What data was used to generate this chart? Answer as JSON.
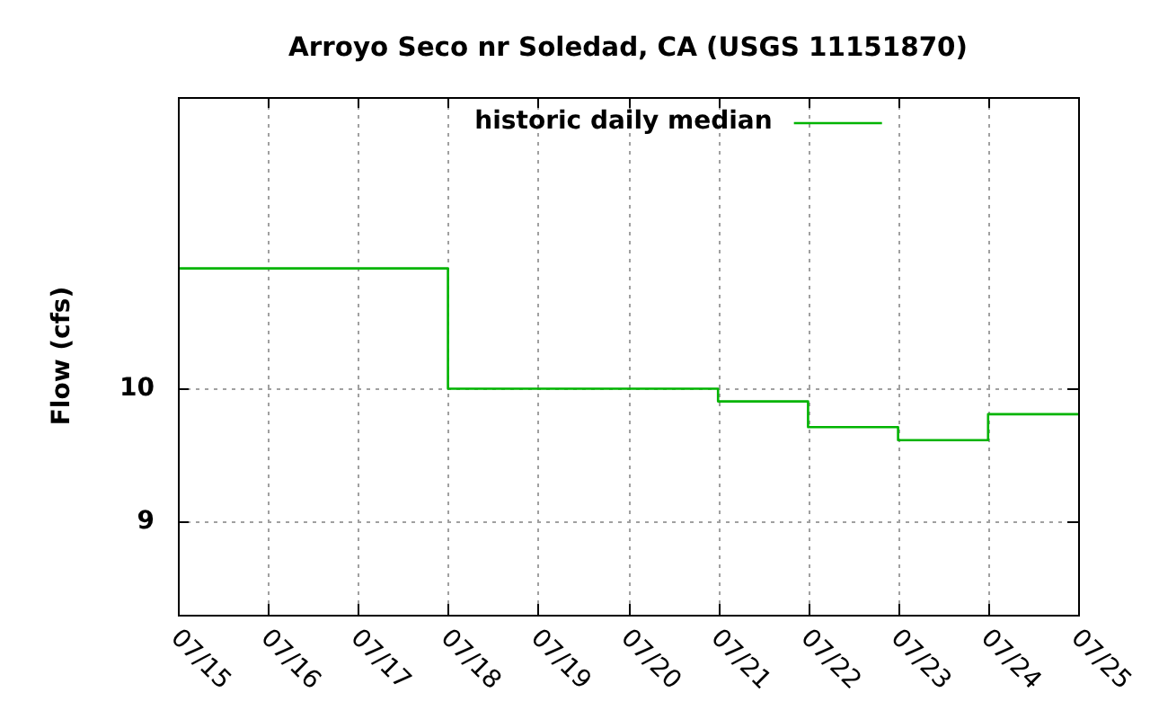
{
  "chart_data": {
    "type": "step",
    "title": "Arroyo Seco nr Soledad, CA (USGS 11151870)",
    "ylabel": "Flow (cfs)",
    "x": [
      "--07-15",
      "--07-16",
      "--07-17",
      "--07-18",
      "--07-19",
      "--07-20",
      "--07-21",
      "--07-22",
      "--07-23",
      "--07-24",
      "--07-25"
    ],
    "series": [
      {
        "name": "historic daily median",
        "color": "#00b400",
        "values": [
          11,
          11,
          11,
          10,
          10,
          10,
          9.9,
          9.7,
          9.6,
          9.8,
          9.8
        ]
      }
    ],
    "xlim": [
      "--07-15",
      "--07-25"
    ],
    "xticks": [
      {
        "value": "--07-15",
        "label": "07/15"
      },
      {
        "value": "--07-16",
        "label": "07/16"
      },
      {
        "value": "--07-17",
        "label": "07/17"
      },
      {
        "value": "--07-18",
        "label": "07/18"
      },
      {
        "value": "--07-19",
        "label": "07/19"
      },
      {
        "value": "--07-20",
        "label": "07/20"
      },
      {
        "value": "--07-21",
        "label": "07/21"
      },
      {
        "value": "--07-22",
        "label": "07/22"
      },
      {
        "value": "--07-23",
        "label": "07/23"
      },
      {
        "value": "--07-24",
        "label": "07/24"
      },
      {
        "value": "--07-25",
        "label": "07/25"
      }
    ],
    "ylim": [
      8.36,
      12.6
    ],
    "yticks": [
      9,
      10
    ],
    "log": true,
    "grid": true,
    "legend": "top",
    "marker": "none"
  }
}
